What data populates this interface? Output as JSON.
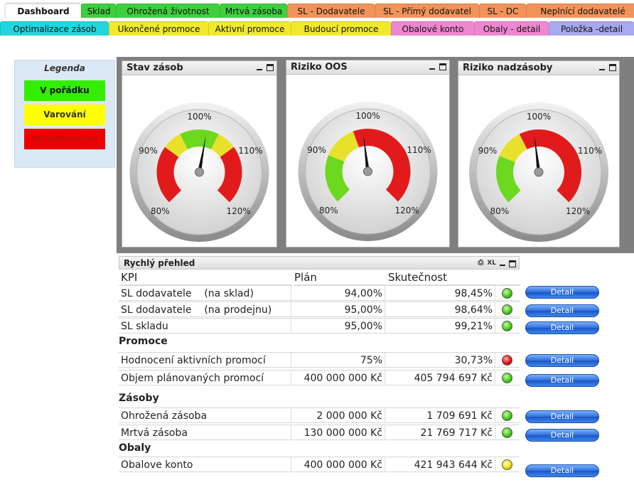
{
  "tabs_row1": [
    {
      "label": "Dashboard",
      "color": "#ffffff",
      "active": true,
      "width": 107
    },
    {
      "label": "Sklad",
      "color": "#3ecf3e",
      "width": 49
    },
    {
      "label": "Ohrožená životnost",
      "color": "#3ecf3e",
      "width": 146
    },
    {
      "label": "Mrtvá zásoba",
      "color": "#3ecf3e",
      "width": 95
    },
    {
      "label": "SL - Dodavatele",
      "color": "#f2935a",
      "width": 123
    },
    {
      "label": "SL - Přímý dodavatel",
      "color": "#f2935a",
      "width": 147
    },
    {
      "label": "SL - DC",
      "color": "#f2935a",
      "width": 66
    },
    {
      "label": "Neplnící dodavatelé",
      "color": "#f2935a",
      "width": 159
    }
  ],
  "tabs_row2": [
    {
      "label": "Optimalizace zásob",
      "color": "#22d6e0",
      "width": 153
    },
    {
      "label": "Ukončené promoce",
      "color": "#f0ea2a",
      "width": 140
    },
    {
      "label": "Aktivní promoce",
      "color": "#f0ea2a",
      "width": 116
    },
    {
      "label": "Budoucí promoce",
      "color": "#f0ea2a",
      "width": 141
    },
    {
      "label": "Obalové konto",
      "color": "#ee86d2",
      "width": 117
    },
    {
      "label": "Obaly - detail",
      "color": "#ee86d2",
      "width": 105
    },
    {
      "label": "Položka -detail",
      "color": "#a8a8f0",
      "width": 120
    }
  ],
  "legend": {
    "title": "Legenda",
    "items": [
      {
        "label": "V pořádku",
        "color": "#33ee00",
        "text_color": "#111111"
      },
      {
        "label": "Varování",
        "color": "#ffff00",
        "text_color": "#333333"
      },
      {
        "label": "Nevyhovující",
        "color": "#ee0000",
        "text_color": "#bb1111"
      }
    ]
  },
  "gauges": [
    {
      "title": "Stav zásob",
      "value": 101.5,
      "ticks": [
        "80%",
        "90%",
        "100%",
        "110%",
        "120%"
      ],
      "bands": [
        {
          "from": 80,
          "to": 92,
          "color": "#e11b1b"
        },
        {
          "from": 92,
          "to": 96,
          "color": "#e8e12c"
        },
        {
          "from": 96,
          "to": 104,
          "color": "#6cd81e"
        },
        {
          "from": 104,
          "to": 108,
          "color": "#e8e12c"
        },
        {
          "from": 108,
          "to": 120,
          "color": "#e11b1b"
        }
      ]
    },
    {
      "title": "Riziko OOS",
      "value": 99,
      "ticks": [
        "80%",
        "90%",
        "100%",
        "110%",
        "120%"
      ],
      "bands": [
        {
          "from": 80,
          "to": 90,
          "color": "#6cd81e"
        },
        {
          "from": 90,
          "to": 97,
          "color": "#e8e12c"
        },
        {
          "from": 97,
          "to": 120,
          "color": "#e11b1b"
        }
      ]
    },
    {
      "title": "Riziko nadzásoby",
      "value": 99,
      "ticks": [
        "80%",
        "90%",
        "100%",
        "110%",
        "120%"
      ],
      "bands": [
        {
          "from": 80,
          "to": 90,
          "color": "#6cd81e"
        },
        {
          "from": 90,
          "to": 96,
          "color": "#e8e12c"
        },
        {
          "from": 96,
          "to": 120,
          "color": "#e11b1b"
        }
      ]
    }
  ],
  "kpi_table": {
    "caption": "Rychlý přehled",
    "xl_label": "XL",
    "headers": {
      "kpi": "KPI",
      "plan": "Plán",
      "actual": "Skutečnost"
    },
    "detail_label": "Detail",
    "rows": [
      {
        "kpi": "SL dodavatele    (na sklad)",
        "plan": "94,00%",
        "actual": "98,45%",
        "status": "green"
      },
      {
        "kpi": "SL dodavatele    (na prodejnu)",
        "plan": "95,00%",
        "actual": "98,64%",
        "status": "green"
      },
      {
        "kpi": "SL skladu",
        "plan": "95,00%",
        "actual": "99,21%",
        "status": "green"
      },
      {
        "section": "Promoce"
      },
      {
        "kpi": "Hodnocení aktivních promocí",
        "plan": "75%",
        "actual": "30,73%",
        "status": "red"
      },
      {
        "kpi": "Objem plánovaných promocí",
        "plan": "400 000 000 Kč",
        "actual": "405 794 697 Kč",
        "status": "green"
      },
      {
        "section": "Zásoby"
      },
      {
        "kpi": "Ohrožená zásoba",
        "plan": "2 000 000 Kč",
        "actual": "1 709 691 Kč",
        "status": "green"
      },
      {
        "kpi": "Mrtvá zásoba",
        "plan": "130 000 000 Kč",
        "actual": "21 769 717 Kč",
        "status": "green"
      },
      {
        "section": "Obaly"
      },
      {
        "kpi": "Obalove konto",
        "plan": "400 000 000 Kč",
        "actual": "421 943 644 Kč",
        "status": "yellow"
      }
    ]
  }
}
